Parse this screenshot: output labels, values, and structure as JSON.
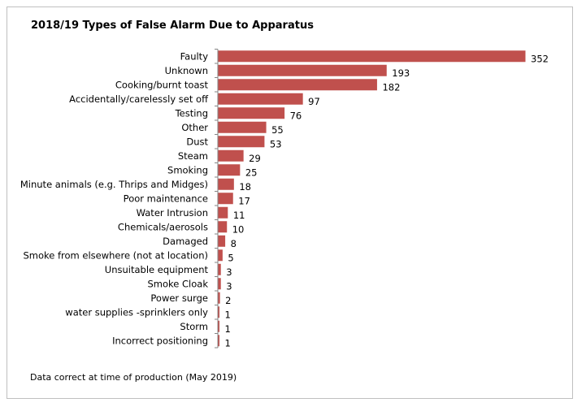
{
  "chart_data": {
    "type": "bar",
    "orientation": "horizontal",
    "title": "2018/19 Types of False Alarm Due to Apparatus",
    "categories": [
      "Faulty",
      "Unknown",
      "Cooking/burnt toast",
      "Accidentally/carelessly set off",
      "Testing",
      "Other",
      "Dust",
      "Steam",
      "Smoking",
      "Minute animals (e.g. Thrips and Midges)",
      "Poor maintenance",
      "Water Intrusion",
      "Chemicals/aerosols",
      "Damaged",
      "Smoke from elsewhere (not at location)",
      "Unsuitable equipment",
      "Smoke Cloak",
      "Power surge",
      "water supplies -sprinklers only",
      "Storm",
      "Incorrect positioning"
    ],
    "values": [
      352,
      193,
      182,
      97,
      76,
      55,
      53,
      29,
      25,
      18,
      17,
      11,
      10,
      8,
      5,
      3,
      3,
      2,
      1,
      1,
      1
    ],
    "xlim": [
      0,
      352
    ],
    "data_labels": true,
    "grid": false,
    "bar_color": "#c0504d",
    "footnote": "Data correct at time of production (May 2019)"
  }
}
